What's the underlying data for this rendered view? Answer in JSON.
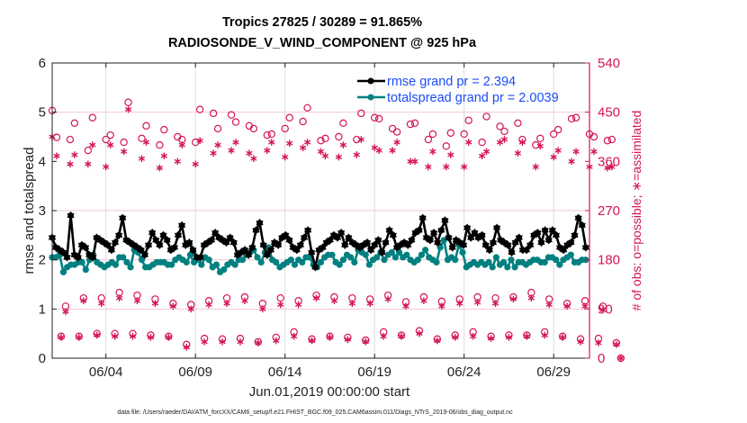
{
  "chart_data": {
    "type": "line",
    "title_line1": "Tropics 27825 / 30289 = 91.865%",
    "title_line2": "RADIOSONDE_V_WIND_COMPONENT @ 925 hPa",
    "xlabel": "Jun.01,2019 00:00:00 start",
    "ylabel": "rmse and totalspread",
    "y2label": "# of obs: o=possible; ∗=assimilated",
    "footer": "data file: /Users/raeder/DAI/ATM_forcXX/CAM6_setup/f.e21.FHIST_BGC.f09_025.CAM6assim.011/Diags_NTrS_2019-06/obs_diag_output.nc",
    "xlim_days": [
      0,
      30
    ],
    "x_ticks": [
      {
        "day": 3,
        "label": "06/04"
      },
      {
        "day": 8,
        "label": "06/09"
      },
      {
        "day": 13,
        "label": "06/14"
      },
      {
        "day": 18,
        "label": "06/19"
      },
      {
        "day": 23,
        "label": "06/24"
      },
      {
        "day": 28,
        "label": "06/29"
      }
    ],
    "ylim": [
      0,
      6
    ],
    "y_ticks": [
      "0",
      "1",
      "2",
      "3",
      "4",
      "5",
      "6"
    ],
    "y2lim": [
      0,
      540
    ],
    "y2_ticks": [
      "0",
      "90",
      "180",
      "270",
      "360",
      "450",
      "540"
    ],
    "grid": true,
    "legend_position": "top-right",
    "colors": {
      "rmse": "#000000",
      "spread": "#008080",
      "obs": "#d4145a",
      "legend_text": "#1a4cf5",
      "grid": "#dddddd",
      "grid_ref": "#f3c6d6"
    },
    "series": [
      {
        "name": "rmse grand pr = 2.394",
        "marker": "star",
        "x_step_days": 0.25,
        "values": [
          2.45,
          2.25,
          2.2,
          2.15,
          2.05,
          2.9,
          2.1,
          2.05,
          2.3,
          2.25,
          2.1,
          2.05,
          2.45,
          2.4,
          2.35,
          2.3,
          2.2,
          2.35,
          2.5,
          2.85,
          2.4,
          2.35,
          2.3,
          2.25,
          2.2,
          2.1,
          2.3,
          2.55,
          2.4,
          2.3,
          2.5,
          2.4,
          2.2,
          2.25,
          2.5,
          2.7,
          2.3,
          2.35,
          2.2,
          2.05,
          2.05,
          2.3,
          2.35,
          2.4,
          2.55,
          2.45,
          2.4,
          2.35,
          2.45,
          2.35,
          2.1,
          2.15,
          2.2,
          2.1,
          2.25,
          2.6,
          2.75,
          2.3,
          2.1,
          2.2,
          2.35,
          2.3,
          2.45,
          2.5,
          2.4,
          2.25,
          2.2,
          2.3,
          2.45,
          2.6,
          2.15,
          1.85,
          2.2,
          2.25,
          2.35,
          2.4,
          2.5,
          2.45,
          2.55,
          2.3,
          2.45,
          2.35,
          2.3,
          2.25,
          2.3,
          2.35,
          2.2,
          2.3,
          2.4,
          2.15,
          2.35,
          2.6,
          2.5,
          2.25,
          2.3,
          2.35,
          2.3,
          2.4,
          2.55,
          2.6,
          2.85,
          2.45,
          2.4,
          2.55,
          2.35,
          2.6,
          2.8,
          2.45,
          2.25,
          2.4,
          2.35,
          2.3,
          2.65,
          2.45,
          2.55,
          2.45,
          2.5,
          2.3,
          2.2,
          2.35,
          2.65,
          2.4,
          2.35,
          2.3,
          2.15,
          2.35,
          2.45,
          2.2,
          2.2,
          2.3,
          2.5,
          2.55,
          2.35,
          2.6,
          2.4,
          2.6,
          2.5,
          2.25,
          2.2,
          2.3,
          2.35,
          2.5,
          2.85,
          2.7,
          2.25
        ]
      },
      {
        "name": "totalspread grand pr = 2.0039",
        "marker": "dot",
        "x_step_days": 0.25,
        "values": [
          2.05,
          2.05,
          2.1,
          1.75,
          1.85,
          1.9,
          1.9,
          1.95,
          1.95,
          1.8,
          2.0,
          2.1,
          1.95,
          1.9,
          1.85,
          1.9,
          1.95,
          1.9,
          2.05,
          2.05,
          1.95,
          1.85,
          2.2,
          2.15,
          2.0,
          1.85,
          1.85,
          1.9,
          1.95,
          1.95,
          1.95,
          1.9,
          1.9,
          2.0,
          2.05,
          2.0,
          1.95,
          2.1,
          1.95,
          2.0,
          1.9,
          2.05,
          2.0,
          1.85,
          1.9,
          1.75,
          1.8,
          1.9,
          1.95,
          1.9,
          2.0,
          2.0,
          2.1,
          2.15,
          2.2,
          2.05,
          1.95,
          2.15,
          2.25,
          2.0,
          1.95,
          1.85,
          1.9,
          1.95,
          2.0,
          1.9,
          2.0,
          1.95,
          2.05,
          2.05,
          1.9,
          1.85,
          1.95,
          2.05,
          2.1,
          2.1,
          1.95,
          1.9,
          2.0,
          2.1,
          2.05,
          1.95,
          2.2,
          2.15,
          2.1,
          1.9,
          2.0,
          2.05,
          2.15,
          2.0,
          2.1,
          2.15,
          2.05,
          2.15,
          2.05,
          2.1,
          2.0,
          1.95,
          2.0,
          2.1,
          2.2,
          2.05,
          2.0,
          1.95,
          2.25,
          2.4,
          2.0,
          2.05,
          2.0,
          2.3,
          2.15,
          1.85,
          1.9,
          1.95,
          1.9,
          1.95,
          1.9,
          1.95,
          1.85,
          2.05,
          1.9,
          1.95,
          1.85,
          2.0,
          1.85,
          1.95,
          1.95,
          1.9,
          1.95,
          2.0,
          2.0,
          1.95,
          1.95,
          2.05,
          2.05,
          2.0,
          1.9,
          2.0,
          2.05,
          2.1,
          1.95,
          1.95,
          2.0,
          2.0
        ]
      },
      {
        "name": "obs possible (o)",
        "axis": "right",
        "marker": "circle",
        "x_step_days": 0.25,
        "values": [
          453,
          404,
          40,
          95,
          400,
          430,
          40,
          110,
          380,
          440,
          45,
          110,
          400,
          408,
          45,
          120,
          395,
          468,
          45,
          115,
          402,
          425,
          42,
          108,
          390,
          418,
          40,
          100,
          405,
          400,
          25,
          98,
          395,
          455,
          36,
          105,
          448,
          420,
          35,
          110,
          445,
          432,
          36,
          112,
          425,
          420,
          30,
          100,
          408,
          410,
          38,
          110,
          420,
          440,
          48,
          105,
          433,
          458,
          35,
          115,
          398,
          402,
          40,
          112,
          405,
          430,
          38,
          110,
          400,
          448,
          33,
          108,
          440,
          438,
          48,
          115,
          420,
          414,
          42,
          103,
          428,
          430,
          50,
          112,
          400,
          410,
          35,
          104,
          388,
          412,
          42,
          108,
          410,
          435,
          48,
          112,
          395,
          442,
          40,
          110,
          424,
          415,
          42,
          112,
          430,
          400,
          42,
          120,
          390,
          402,
          48,
          108,
          410,
          418,
          40,
          100,
          438,
          440,
          35,
          105,
          410,
          405,
          36,
          95,
          398,
          400,
          28,
          0
        ]
      },
      {
        "name": "obs assimilated (∗)",
        "axis": "right",
        "marker": "asterisk",
        "x_step_days": 0.25,
        "values": [
          405,
          370,
          38,
          85,
          355,
          372,
          38,
          105,
          355,
          390,
          42,
          100,
          350,
          390,
          40,
          110,
          378,
          455,
          40,
          105,
          365,
          395,
          38,
          100,
          348,
          370,
          38,
          95,
          360,
          390,
          20,
          90,
          355,
          398,
          30,
          98,
          375,
          390,
          30,
          100,
          380,
          395,
          30,
          105,
          375,
          365,
          28,
          90,
          380,
          395,
          32,
          98,
          368,
          393,
          40,
          98,
          385,
          395,
          32,
          110,
          378,
          370,
          38,
          105,
          368,
          390,
          34,
          100,
          372,
          400,
          30,
          100,
          385,
          380,
          40,
          108,
          380,
          395,
          40,
          95,
          360,
          360,
          45,
          105,
          350,
          378,
          32,
          95,
          350,
          372,
          38,
          100,
          350,
          395,
          40,
          102,
          370,
          378,
          36,
          100,
          395,
          400,
          38,
          108,
          375,
          395,
          40,
          110,
          350,
          388,
          42,
          98,
          368,
          380,
          38,
          95,
          360,
          378,
          30,
          95,
          350,
          378,
          28,
          88,
          348,
          350,
          25,
          0
        ]
      }
    ]
  }
}
